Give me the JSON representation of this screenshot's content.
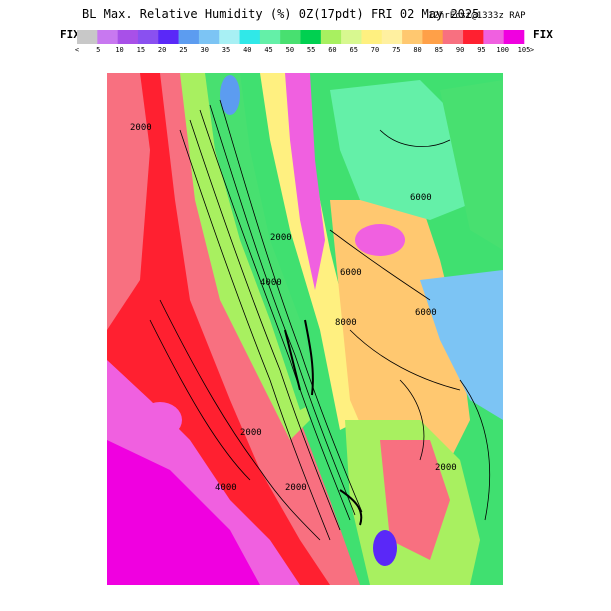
{
  "header": {
    "title": "BL Max. Relative Humidity (%) 0Z(17pdt) FRI 02 May 2025",
    "subtitle": "12hrFcst@1333z RAP",
    "fix_left": "FIX",
    "fix_right": "FIX"
  },
  "colorbar": {
    "colors": [
      "#c8c8c8",
      "#c878f0",
      "#a850e8",
      "#8a50f0",
      "#5a28f8",
      "#5c9cf0",
      "#7cc4f4",
      "#a8f0f4",
      "#30e8e8",
      "#64f0a8",
      "#48e070",
      "#00d050",
      "#a8f060",
      "#d8f890",
      "#fff080",
      "#fff0a0",
      "#ffc870",
      "#ffa048",
      "#f87080",
      "#ff2030",
      "#f060e0",
      "#f000e0"
    ],
    "labels": [
      "<",
      "5",
      "10",
      "15",
      "20",
      "25",
      "30",
      "35",
      "40",
      "45",
      "50",
      "55",
      "60",
      "65",
      "70",
      "75",
      "80",
      "85",
      "90",
      "95",
      "100",
      "105",
      ">"
    ]
  },
  "map": {
    "contour_labels": [
      "2000",
      "4000",
      "6000",
      "6000",
      "8000",
      "6000",
      "2000",
      "2000",
      "2000",
      "4000",
      "2000"
    ]
  }
}
